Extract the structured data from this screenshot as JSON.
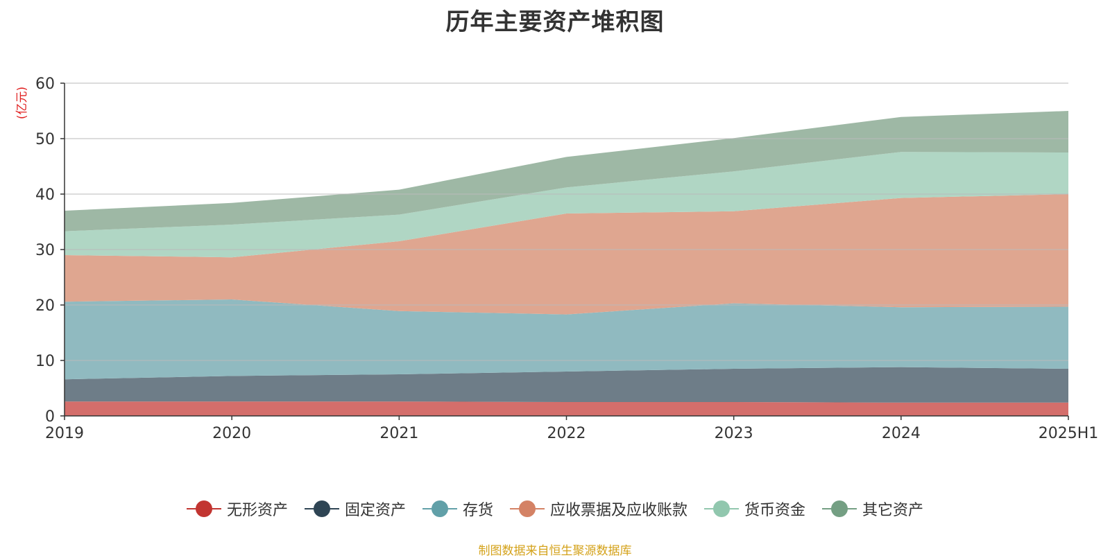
{
  "chart_data": {
    "type": "area",
    "stacked": true,
    "title": "历年主要资产堆积图",
    "ylabel": "(亿元)",
    "xlabel": "",
    "categories": [
      "2019",
      "2020",
      "2021",
      "2022",
      "2023",
      "2024",
      "2025H1"
    ],
    "ylim": [
      0,
      60
    ],
    "yticks": [
      0,
      10,
      20,
      30,
      40,
      50,
      60
    ],
    "grid": true,
    "legend_position": "bottom",
    "series": [
      {
        "name": "无形资产",
        "color": "#c23531",
        "area_color": "#d46e6b",
        "values": [
          2.6,
          2.6,
          2.6,
          2.5,
          2.5,
          2.4,
          2.4
        ]
      },
      {
        "name": "固定资产",
        "color": "#2f4554",
        "area_color": "#6e7d88",
        "values": [
          4.0,
          4.6,
          4.9,
          5.5,
          6.0,
          6.4,
          6.1
        ]
      },
      {
        "name": "存货",
        "color": "#61a0a8",
        "area_color": "#90bac0",
        "values": [
          14.0,
          13.8,
          11.4,
          10.3,
          11.8,
          10.8,
          11.2
        ]
      },
      {
        "name": "应收票据及应收账款",
        "color": "#d48265",
        "area_color": "#dfa690",
        "values": [
          8.4,
          7.6,
          12.6,
          18.2,
          16.6,
          19.7,
          20.3
        ]
      },
      {
        "name": "货币资金",
        "color": "#91c7ae",
        "area_color": "#b0d6c4",
        "values": [
          4.3,
          5.9,
          4.8,
          4.7,
          7.2,
          8.3,
          7.5
        ]
      },
      {
        "name": "其它资产",
        "color": "#749f83",
        "area_color": "#9eb8a5",
        "values": [
          3.7,
          3.9,
          4.5,
          5.5,
          6.0,
          6.3,
          7.5
        ]
      }
    ]
  },
  "source": "制图数据来自恒生聚源数据库"
}
